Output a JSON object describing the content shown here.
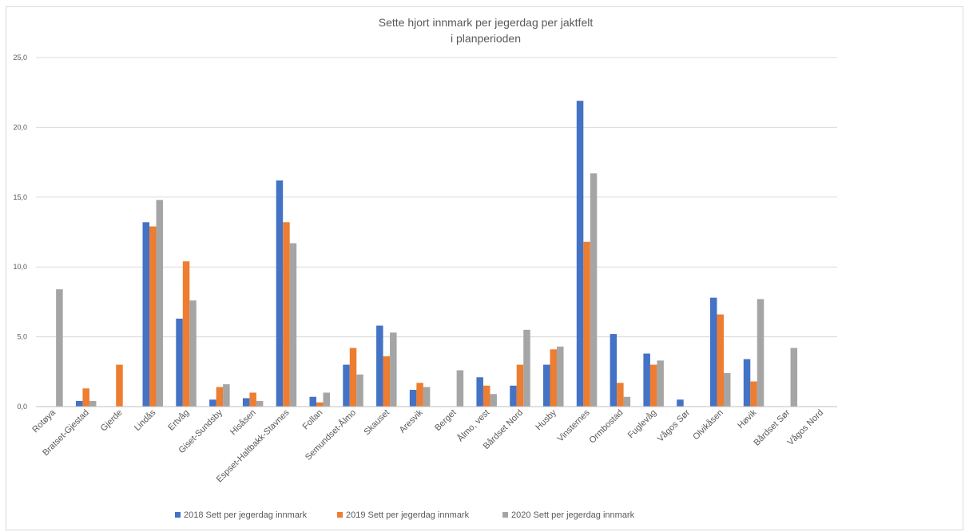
{
  "chart_data": {
    "type": "bar",
    "title_lines": [
      "Sette hjort innmark per jegerdag per jaktfelt",
      "i planperioden"
    ],
    "xlabel": "",
    "ylabel": "",
    "ylim": [
      0,
      25
    ],
    "yticks": [
      0,
      5,
      10,
      15,
      20,
      25
    ],
    "ytick_labels": [
      "0,0",
      "5,0",
      "10,0",
      "15,0",
      "20,0",
      "25,0"
    ],
    "grid": true,
    "legend_position": "bottom",
    "categories": [
      "Rotøya",
      "Bratset-Gjestad",
      "Gjerde",
      "Lindås",
      "Ertvåg",
      "Giset-Sundsby",
      "Hisåsen",
      "Espset-Haltbakk-Stavnes",
      "Follan",
      "Semundset-Ålmo",
      "Skauset",
      "Aresvik",
      "Berget",
      "Ålmo, vest",
      "Bårdset Nord",
      "Husby",
      "Vinsternes",
      "Ormbostad",
      "Fuglevåg",
      "Vågos Sør",
      "Olvikåsen",
      "Høvik",
      "Bårdset Sør",
      "Vågos Nord"
    ],
    "series": [
      {
        "name": "2018 Sett per jegerdag innmark",
        "color": "#4472C4",
        "values": [
          0,
          0.4,
          0,
          13.2,
          6.3,
          0.5,
          0.6,
          16.2,
          0.7,
          3.0,
          5.8,
          1.2,
          0,
          2.1,
          1.5,
          3.0,
          21.9,
          5.2,
          3.8,
          0.5,
          7.8,
          3.4,
          0,
          0
        ]
      },
      {
        "name": "2019 Sett per jegerdag innmark",
        "color": "#ED7D31",
        "values": [
          0,
          1.3,
          3.0,
          12.9,
          10.4,
          1.4,
          1.0,
          13.2,
          0.3,
          4.2,
          3.6,
          1.7,
          0,
          1.5,
          3.0,
          4.1,
          11.8,
          1.7,
          3.0,
          0,
          6.6,
          1.8,
          0,
          0
        ]
      },
      {
        "name": "2020 Sett per jegerdag innmark",
        "color": "#A5A5A5",
        "values": [
          8.4,
          0.4,
          0,
          14.8,
          7.6,
          1.6,
          0.4,
          11.7,
          1.0,
          2.3,
          5.3,
          1.4,
          2.6,
          0.9,
          5.5,
          4.3,
          16.7,
          0.7,
          3.3,
          0,
          2.4,
          7.7,
          4.2,
          0
        ]
      }
    ]
  }
}
